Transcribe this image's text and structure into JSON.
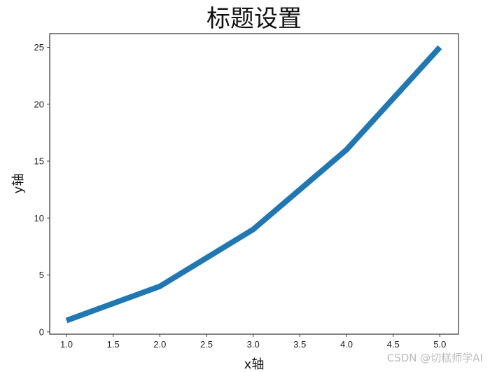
{
  "chart_data": {
    "type": "line",
    "title": "标题设置",
    "xlabel": "x轴",
    "ylabel": "y轴",
    "x": [
      1,
      2,
      3,
      4,
      5
    ],
    "series": [
      {
        "values": [
          1,
          4,
          9,
          16,
          25
        ],
        "color": "#1f77b4"
      }
    ],
    "xlim": [
      0.82,
      5.2
    ],
    "ylim": [
      -0.2,
      26.2
    ],
    "xticks": [
      "1.0",
      "1.5",
      "2.0",
      "2.5",
      "3.0",
      "3.5",
      "4.0",
      "4.5",
      "5.0"
    ],
    "yticks": [
      "0",
      "5",
      "10",
      "15",
      "20",
      "25"
    ],
    "grid": false
  },
  "watermark": "CSDN @切糕师学AI"
}
